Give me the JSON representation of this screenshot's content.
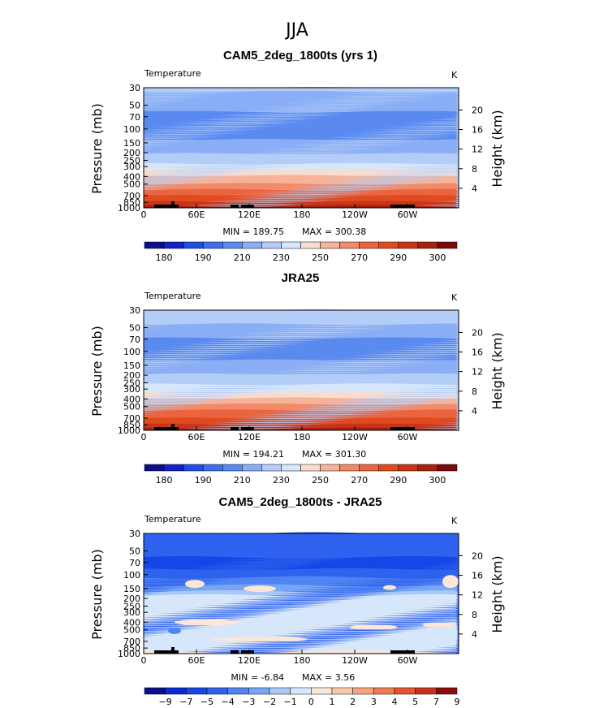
{
  "figure_title": "JJA",
  "chart_data": [
    {
      "type": "heatmap",
      "title": "CAM5_2deg_1800ts (yrs 1)",
      "variable": "Temperature",
      "units": "K",
      "ylabel_left": "Pressure (mb)",
      "ylabel_right": "Height (km)",
      "pressure_ticks": [
        "30",
        "50",
        "70",
        "100",
        "150",
        "200",
        "250",
        "300",
        "400",
        "500",
        "700",
        "850",
        "1000"
      ],
      "height_ticks": [
        "20",
        "16",
        "12",
        "8",
        "4"
      ],
      "longitude_ticks": [
        "0",
        "60E",
        "120E",
        "180",
        "120W",
        "60W"
      ],
      "min_label": "MIN = 189.75",
      "max_label": "MAX = 300.38",
      "min": 189.75,
      "max": 300.38,
      "colorbar_labels": [
        "180",
        "190",
        "210",
        "230",
        "250",
        "270",
        "290",
        "300"
      ],
      "profile_levels": [
        {
          "pressure": 30,
          "value": 222
        },
        {
          "pressure": 50,
          "value": 214
        },
        {
          "pressure": 70,
          "value": 206
        },
        {
          "pressure": 100,
          "value": 201
        },
        {
          "pressure": 150,
          "value": 212
        },
        {
          "pressure": 200,
          "value": 219
        },
        {
          "pressure": 250,
          "value": 226
        },
        {
          "pressure": 300,
          "value": 235
        },
        {
          "pressure": 400,
          "value": 250
        },
        {
          "pressure": 500,
          "value": 262
        },
        {
          "pressure": 700,
          "value": 280
        },
        {
          "pressure": 850,
          "value": 290
        },
        {
          "pressure": 1000,
          "value": 298
        }
      ]
    },
    {
      "type": "heatmap",
      "title": "JRA25",
      "variable": "Temperature",
      "units": "K",
      "ylabel_left": "Pressure (mb)",
      "ylabel_right": "Height (km)",
      "pressure_ticks": [
        "30",
        "50",
        "70",
        "100",
        "150",
        "200",
        "250",
        "300",
        "400",
        "500",
        "700",
        "850",
        "1000"
      ],
      "height_ticks": [
        "20",
        "16",
        "12",
        "8",
        "4"
      ],
      "longitude_ticks": [
        "0",
        "60E",
        "120E",
        "180",
        "120W",
        "60W"
      ],
      "min_label": "MIN = 194.21",
      "max_label": "MAX = 301.30",
      "min": 194.21,
      "max": 301.3,
      "colorbar_labels": [
        "180",
        "190",
        "210",
        "230",
        "250",
        "270",
        "290",
        "300"
      ],
      "profile_levels": [
        {
          "pressure": 30,
          "value": 228
        },
        {
          "pressure": 50,
          "value": 218
        },
        {
          "pressure": 70,
          "value": 210
        },
        {
          "pressure": 100,
          "value": 204
        },
        {
          "pressure": 150,
          "value": 213
        },
        {
          "pressure": 200,
          "value": 220
        },
        {
          "pressure": 250,
          "value": 227
        },
        {
          "pressure": 300,
          "value": 236
        },
        {
          "pressure": 400,
          "value": 251
        },
        {
          "pressure": 500,
          "value": 263
        },
        {
          "pressure": 700,
          "value": 281
        },
        {
          "pressure": 850,
          "value": 291
        },
        {
          "pressure": 1000,
          "value": 299
        }
      ]
    },
    {
      "type": "heatmap",
      "title": "CAM5_2deg_1800ts - JRA25",
      "variable": "Temperature",
      "units": "K",
      "ylabel_left": "Pressure (mb)",
      "ylabel_right": "Height (km)",
      "pressure_ticks": [
        "30",
        "50",
        "70",
        "100",
        "150",
        "200",
        "250",
        "300",
        "400",
        "500",
        "700",
        "850",
        "1000"
      ],
      "height_ticks": [
        "20",
        "16",
        "12",
        "8",
        "4"
      ],
      "longitude_ticks": [
        "0",
        "60E",
        "120E",
        "180",
        "120W",
        "60W"
      ],
      "min_label": "MIN =   -6.84",
      "max_label": "MAX =    3.56",
      "min": -6.84,
      "max": 3.56,
      "colorbar_labels": [
        "−9",
        "−7",
        "−5",
        "−4",
        "−3",
        "−2",
        "−1",
        "0",
        "1",
        "2",
        "3",
        "4",
        "5",
        "7",
        "9"
      ],
      "profile_levels": [
        {
          "pressure": 30,
          "value": -4.5
        },
        {
          "pressure": 50,
          "value": -4.5
        },
        {
          "pressure": 70,
          "value": -5.5
        },
        {
          "pressure": 100,
          "value": -4.5
        },
        {
          "pressure": 150,
          "value": -2.5
        },
        {
          "pressure": 200,
          "value": -0.5
        },
        {
          "pressure": 250,
          "value": -0.5
        },
        {
          "pressure": 300,
          "value": -0.5
        },
        {
          "pressure": 400,
          "value": -0.5
        },
        {
          "pressure": 500,
          "value": -0.5
        },
        {
          "pressure": 700,
          "value": -0.5
        },
        {
          "pressure": 850,
          "value": -0.5
        },
        {
          "pressure": 1000,
          "value": 0.5
        }
      ]
    }
  ],
  "colors": {
    "temperature_palette": [
      "#0d0f8a",
      "#1520c9",
      "#1f4fe0",
      "#3d6fe8",
      "#5a8af0",
      "#8aaef5",
      "#b3cdf8",
      "#d6e6fb",
      "#f7ddd0",
      "#f5b39a",
      "#f08a68",
      "#eb6440",
      "#e04a1f",
      "#c8351a",
      "#a8200f",
      "#7a0b08"
    ],
    "difference_palette": [
      "#0d0f8a",
      "#0a2bd0",
      "#1547e6",
      "#2f62ee",
      "#4f84f2",
      "#77a6f6",
      "#a7c8f9",
      "#d7e7fb",
      "#fbe6d8",
      "#f8c8a9",
      "#f4a57c",
      "#ef7e52",
      "#e5542b",
      "#c9321a",
      "#8a0d07"
    ],
    "topography": "#000000"
  }
}
